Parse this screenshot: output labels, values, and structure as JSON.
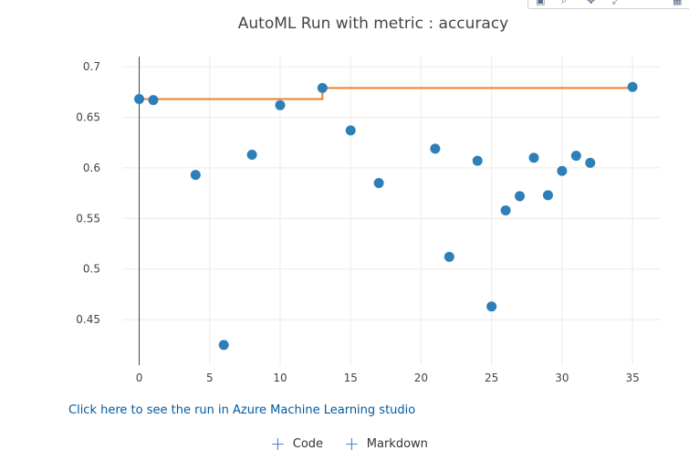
{
  "chart_data": {
    "type": "scatter",
    "title": "AutoML Run with metric : accuracy",
    "xlabel": "",
    "ylabel": "",
    "xlim": [
      -1.2,
      37
    ],
    "ylim": [
      0.405,
      0.71
    ],
    "xticks": [
      0,
      5,
      10,
      15,
      20,
      25,
      30,
      35
    ],
    "yticks": [
      0.45,
      0.5,
      0.55,
      0.6,
      0.65,
      0.7
    ],
    "xtick_labels": [
      "0",
      "5",
      "10",
      "15",
      "20",
      "25",
      "30",
      "35"
    ],
    "ytick_labels": [
      "0.45",
      "0.5",
      "0.55",
      "0.6",
      "0.65",
      "0.7"
    ],
    "grid": true,
    "series": [
      {
        "type": "scatter",
        "color": "#2e7fb8",
        "x": [
          0,
          1,
          4,
          6,
          8,
          10,
          13,
          15,
          17,
          21,
          22,
          24,
          25,
          26,
          27,
          28,
          29,
          30,
          31,
          32,
          35
        ],
        "y": [
          0.668,
          0.667,
          0.593,
          0.425,
          0.613,
          0.662,
          0.679,
          0.637,
          0.585,
          0.619,
          0.512,
          0.607,
          0.463,
          0.558,
          0.572,
          0.61,
          0.573,
          0.597,
          0.612,
          0.605,
          0.68
        ]
      },
      {
        "type": "step",
        "color": "#f07f2e",
        "x": [
          0,
          13,
          35
        ],
        "y": [
          0.668,
          0.679,
          0.68
        ]
      }
    ]
  },
  "link": {
    "label": "Click here to see the run in Azure Machine Learning studio"
  },
  "actions": {
    "code_label": "Code",
    "markdown_label": "Markdown",
    "plus_glyph": "+"
  }
}
